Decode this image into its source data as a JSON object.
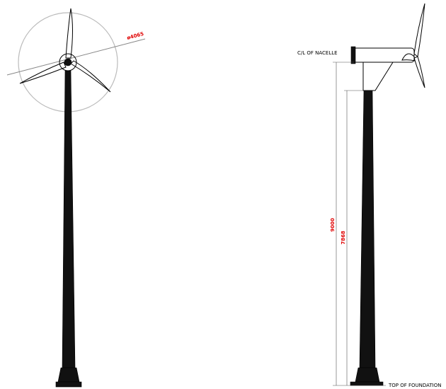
{
  "front_view": {
    "rotor_diameter": "ø4065"
  },
  "side_view": {
    "nacelle_label": "C/L OF NACELLE",
    "hub_height": "9000",
    "tower_height": "7868",
    "foundation_label": "TOP OF FOUNDATION"
  }
}
